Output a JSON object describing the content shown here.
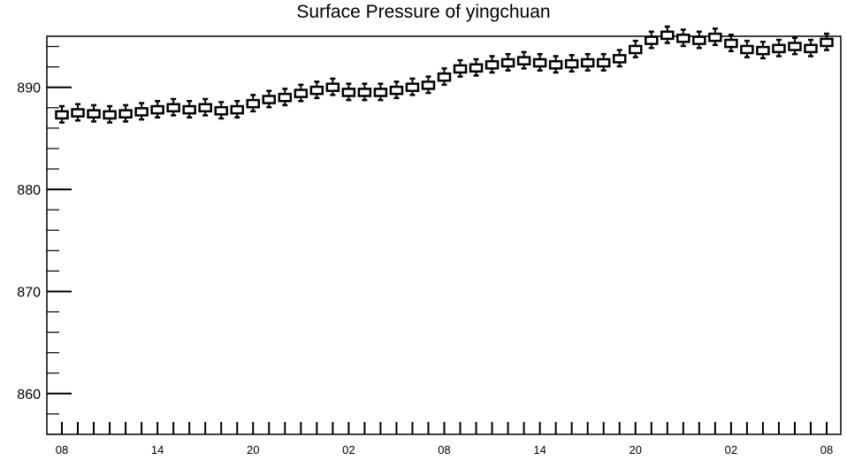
{
  "chart_data": {
    "type": "box",
    "title": "Surface Pressure of yingchuan",
    "xlabel": "",
    "ylabel": "",
    "ylim": [
      856,
      895
    ],
    "y_ticks": [
      860,
      870,
      880,
      890
    ],
    "x_tick_labels": [
      "08",
      "14",
      "20",
      "02",
      "08",
      "14",
      "20",
      "02",
      "08"
    ],
    "grid": false,
    "categories_count": 49,
    "medians": [
      887.3,
      887.5,
      887.4,
      887.3,
      887.4,
      887.6,
      887.8,
      888.0,
      887.8,
      888.0,
      887.7,
      887.8,
      888.4,
      888.8,
      889.0,
      889.4,
      889.7,
      890.0,
      889.5,
      889.5,
      889.5,
      889.7,
      890.0,
      890.2,
      891.0,
      891.8,
      891.9,
      892.2,
      892.4,
      892.6,
      892.4,
      892.2,
      892.3,
      892.4,
      892.4,
      892.8,
      893.7,
      894.6,
      895.1,
      894.8,
      894.6,
      894.9,
      894.3,
      893.7,
      893.6,
      893.8,
      894.0,
      893.8,
      894.4
    ]
  }
}
